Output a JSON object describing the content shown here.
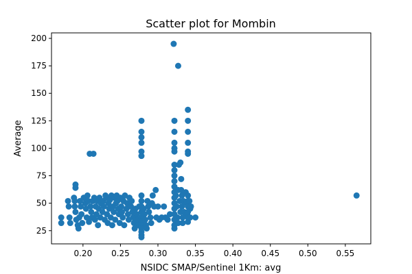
{
  "chart_data": {
    "type": "scatter",
    "title": "Scatter plot for Mombin",
    "xlabel": "NSIDC SMAP/Sentinel 1Km: avg",
    "ylabel": "Average",
    "xlim": [
      0.158,
      0.584
    ],
    "ylim": [
      13,
      205
    ],
    "xticks": [
      0.2,
      0.25,
      0.3,
      0.35,
      0.4,
      0.45,
      0.5,
      0.55
    ],
    "xtick_labels": [
      "0.20",
      "0.25",
      "0.30",
      "0.35",
      "0.40",
      "0.45",
      "0.50",
      "0.55"
    ],
    "yticks": [
      25,
      50,
      75,
      100,
      125,
      150,
      175,
      200
    ],
    "ytick_labels": [
      "25",
      "50",
      "75",
      "100",
      "125",
      "150",
      "175",
      "200"
    ],
    "grid": false,
    "legend": "none",
    "marker_color": "#1f77b4",
    "series": [
      {
        "points": [
          [
            0.171,
            37
          ],
          [
            0.171,
            32
          ],
          [
            0.18,
            52
          ],
          [
            0.181,
            47
          ],
          [
            0.182,
            37
          ],
          [
            0.183,
            32
          ],
          [
            0.188,
            55
          ],
          [
            0.189,
            52
          ],
          [
            0.189,
            47
          ],
          [
            0.19,
            67
          ],
          [
            0.19,
            64
          ],
          [
            0.19,
            42
          ],
          [
            0.191,
            35
          ],
          [
            0.193,
            30
          ],
          [
            0.194,
            27
          ],
          [
            0.195,
            37
          ],
          [
            0.196,
            52
          ],
          [
            0.197,
            47
          ],
          [
            0.198,
            40
          ],
          [
            0.199,
            32
          ],
          [
            0.201,
            55
          ],
          [
            0.203,
            50
          ],
          [
            0.204,
            45
          ],
          [
            0.205,
            37
          ],
          [
            0.206,
            57
          ],
          [
            0.207,
            52
          ],
          [
            0.208,
            33
          ],
          [
            0.209,
            95
          ],
          [
            0.21,
            47
          ],
          [
            0.211,
            42
          ],
          [
            0.212,
            37
          ],
          [
            0.213,
            52
          ],
          [
            0.214,
            95
          ],
          [
            0.215,
            55
          ],
          [
            0.216,
            35
          ],
          [
            0.217,
            47
          ],
          [
            0.218,
            40
          ],
          [
            0.219,
            52
          ],
          [
            0.22,
            30
          ],
          [
            0.221,
            45
          ],
          [
            0.222,
            55
          ],
          [
            0.223,
            37
          ],
          [
            0.224,
            50
          ],
          [
            0.226,
            42
          ],
          [
            0.227,
            52
          ],
          [
            0.228,
            47
          ],
          [
            0.229,
            35
          ],
          [
            0.23,
            57
          ],
          [
            0.231,
            55
          ],
          [
            0.232,
            40
          ],
          [
            0.233,
            32
          ],
          [
            0.234,
            50
          ],
          [
            0.235,
            45
          ],
          [
            0.236,
            53
          ],
          [
            0.237,
            37
          ],
          [
            0.238,
            57
          ],
          [
            0.239,
            30
          ],
          [
            0.24,
            47
          ],
          [
            0.241,
            42
          ],
          [
            0.242,
            55
          ],
          [
            0.243,
            35
          ],
          [
            0.244,
            50
          ],
          [
            0.245,
            57
          ],
          [
            0.246,
            52
          ],
          [
            0.247,
            45
          ],
          [
            0.248,
            40
          ],
          [
            0.249,
            32
          ],
          [
            0.25,
            55
          ],
          [
            0.251,
            47
          ],
          [
            0.252,
            42
          ],
          [
            0.253,
            37
          ],
          [
            0.254,
            52
          ],
          [
            0.255,
            30
          ],
          [
            0.256,
            57
          ],
          [
            0.258,
            45
          ],
          [
            0.259,
            50
          ],
          [
            0.26,
            40
          ],
          [
            0.261,
            35
          ],
          [
            0.262,
            55
          ],
          [
            0.264,
            47
          ],
          [
            0.265,
            52
          ],
          [
            0.266,
            42
          ],
          [
            0.267,
            37
          ],
          [
            0.268,
            32
          ],
          [
            0.269,
            27
          ],
          [
            0.27,
            45
          ],
          [
            0.272,
            40
          ],
          [
            0.273,
            35
          ],
          [
            0.274,
            30
          ],
          [
            0.275,
            47
          ],
          [
            0.278,
            125
          ],
          [
            0.278,
            115
          ],
          [
            0.278,
            110
          ],
          [
            0.278,
            105
          ],
          [
            0.278,
            97
          ],
          [
            0.278,
            93
          ],
          [
            0.278,
            57
          ],
          [
            0.278,
            52
          ],
          [
            0.278,
            47
          ],
          [
            0.278,
            42
          ],
          [
            0.278,
            37
          ],
          [
            0.278,
            33
          ],
          [
            0.278,
            30
          ],
          [
            0.278,
            27
          ],
          [
            0.278,
            24
          ],
          [
            0.278,
            21
          ],
          [
            0.278,
            19
          ],
          [
            0.281,
            45
          ],
          [
            0.282,
            40
          ],
          [
            0.283,
            35
          ],
          [
            0.284,
            30
          ],
          [
            0.285,
            27
          ],
          [
            0.286,
            52
          ],
          [
            0.287,
            47
          ],
          [
            0.288,
            42
          ],
          [
            0.29,
            37
          ],
          [
            0.291,
            32
          ],
          [
            0.292,
            50
          ],
          [
            0.293,
            57
          ],
          [
            0.295,
            47
          ],
          [
            0.297,
            62
          ],
          [
            0.298,
            37
          ],
          [
            0.3,
            47
          ],
          [
            0.302,
            35
          ],
          [
            0.305,
            37
          ],
          [
            0.308,
            47
          ],
          [
            0.31,
            37
          ],
          [
            0.313,
            35
          ],
          [
            0.316,
            40
          ],
          [
            0.321,
            195
          ],
          [
            0.322,
            125
          ],
          [
            0.322,
            115
          ],
          [
            0.322,
            105
          ],
          [
            0.322,
            100
          ],
          [
            0.322,
            97
          ],
          [
            0.322,
            85
          ],
          [
            0.322,
            80
          ],
          [
            0.322,
            75
          ],
          [
            0.322,
            70
          ],
          [
            0.322,
            65
          ],
          [
            0.322,
            60
          ],
          [
            0.322,
            55
          ],
          [
            0.322,
            50
          ],
          [
            0.322,
            45
          ],
          [
            0.322,
            40
          ],
          [
            0.322,
            35
          ],
          [
            0.322,
            30
          ],
          [
            0.322,
            27
          ],
          [
            0.324,
            57
          ],
          [
            0.325,
            47
          ],
          [
            0.326,
            37
          ],
          [
            0.327,
            175
          ],
          [
            0.327,
            62
          ],
          [
            0.327,
            32
          ],
          [
            0.328,
            85
          ],
          [
            0.329,
            52
          ],
          [
            0.33,
            42
          ],
          [
            0.33,
            87
          ],
          [
            0.331,
            72
          ],
          [
            0.331,
            62
          ],
          [
            0.332,
            57
          ],
          [
            0.332,
            47
          ],
          [
            0.333,
            37
          ],
          [
            0.333,
            32
          ],
          [
            0.334,
            52
          ],
          [
            0.335,
            42
          ],
          [
            0.337,
            60
          ],
          [
            0.338,
            50
          ],
          [
            0.339,
            40
          ],
          [
            0.34,
            135
          ],
          [
            0.34,
            125
          ],
          [
            0.34,
            115
          ],
          [
            0.34,
            105
          ],
          [
            0.34,
            97
          ],
          [
            0.34,
            95
          ],
          [
            0.34,
            57
          ],
          [
            0.34,
            52
          ],
          [
            0.34,
            47
          ],
          [
            0.34,
            42
          ],
          [
            0.34,
            37
          ],
          [
            0.34,
            33
          ],
          [
            0.342,
            52
          ],
          [
            0.343,
            45
          ],
          [
            0.343,
            37
          ],
          [
            0.344,
            47
          ],
          [
            0.35,
            37
          ],
          [
            0.565,
            57
          ]
        ]
      }
    ]
  }
}
